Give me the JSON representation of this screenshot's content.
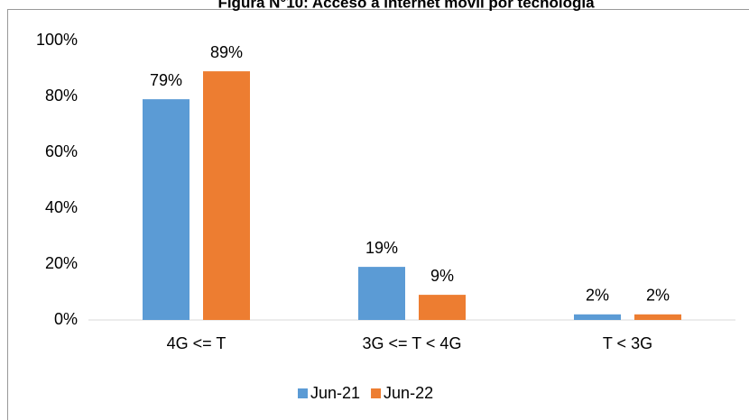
{
  "chart_data": {
    "type": "bar",
    "title": "Figura N°10: Acceso a internet móvil por tecnología",
    "categories": [
      "4G <= T",
      "3G <= T < 4G",
      "T < 3G"
    ],
    "series": [
      {
        "name": "Jun-21",
        "color": "#5b9bd5",
        "values": [
          79,
          19,
          2
        ],
        "value_labels": [
          "79%",
          "19%",
          "2%"
        ]
      },
      {
        "name": "Jun-22",
        "color": "#ed7d31",
        "values": [
          89,
          9,
          2
        ],
        "value_labels": [
          "89%",
          "9%",
          "2%"
        ]
      }
    ],
    "ylim": [
      0,
      100
    ],
    "yticks": [
      {
        "value": 0,
        "label": "0%"
      },
      {
        "value": 20,
        "label": "20%"
      },
      {
        "value": 40,
        "label": "40%"
      },
      {
        "value": 60,
        "label": "60%"
      },
      {
        "value": 80,
        "label": "80%"
      },
      {
        "value": 100,
        "label": "100%"
      }
    ],
    "grid": false,
    "legend": "bottom"
  }
}
